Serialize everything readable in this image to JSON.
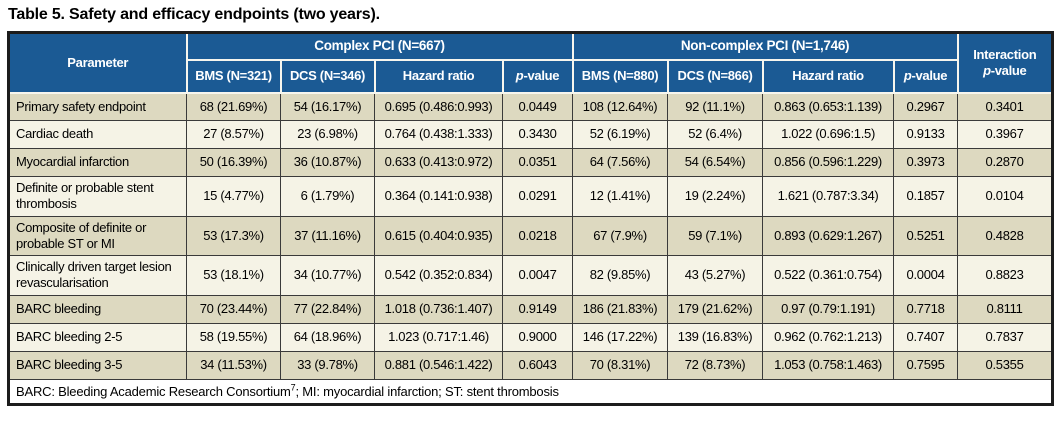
{
  "page": {
    "title": "Table 5. Safety and efficacy endpoints (two years)."
  },
  "table": {
    "colors": {
      "header_bg": "#1B5A94",
      "header_text": "#FFFFFF",
      "row_odd_bg": "#DDD9C0",
      "row_even_bg": "#F5F3E6",
      "footnote_bg": "#FFFFFF",
      "border_dark": "#3A3A3A"
    },
    "header": {
      "parameter_label": "Parameter",
      "group_complex": "Complex PCI (N=667)",
      "group_noncomplex": "Non-complex PCI (N=1,746)",
      "interaction": {
        "line1": "Interaction",
        "p_italic": "p",
        "p_rest": "-value"
      },
      "subcolumns": [
        {
          "text": "BMS (N=321)"
        },
        {
          "text": "DCS (N=346)"
        },
        {
          "text": "Hazard ratio"
        },
        {
          "italic": "p",
          "text": "-value"
        },
        {
          "text": "BMS (N=880)"
        },
        {
          "text": "DCS (N=866)"
        },
        {
          "text": "Hazard ratio"
        },
        {
          "italic": "p",
          "text": "-value"
        }
      ]
    },
    "rows": [
      {
        "parameter": "Primary safety endpoint",
        "cells": [
          "68 (21.69%)",
          "54 (16.17%)",
          "0.695 (0.486:0.993)",
          "0.0449",
          "108 (12.64%)",
          "92 (11.1%)",
          "0.863 (0.653:1.139)",
          "0.2967",
          "0.3401"
        ]
      },
      {
        "parameter": "Cardiac death",
        "cells": [
          "27 (8.57%)",
          "23 (6.98%)",
          "0.764 (0.438:1.333)",
          "0.3430",
          "52 (6.19%)",
          "52 (6.4%)",
          "1.022 (0.696:1.5)",
          "0.9133",
          "0.3967"
        ]
      },
      {
        "parameter": "Myocardial infarction",
        "cells": [
          "50 (16.39%)",
          "36 (10.87%)",
          "0.633 (0.413:0.972)",
          "0.0351",
          "64 (7.56%)",
          "54 (6.54%)",
          "0.856 (0.596:1.229)",
          "0.3973",
          "0.2870"
        ]
      },
      {
        "parameter": "Definite or probable stent thrombosis",
        "cells": [
          "15 (4.77%)",
          "6 (1.79%)",
          "0.364 (0.141:0.938)",
          "0.0291",
          "12 (1.41%)",
          "19 (2.24%)",
          "1.621 (0.787:3.34)",
          "0.1857",
          "0.0104"
        ]
      },
      {
        "parameter": "Composite of definite or probable ST or MI",
        "cells": [
          "53 (17.3%)",
          "37 (11.16%)",
          "0.615 (0.404:0.935)",
          "0.0218",
          "67 (7.9%)",
          "59 (7.1%)",
          "0.893 (0.629:1.267)",
          "0.5251",
          "0.4828"
        ]
      },
      {
        "parameter": "Clinically driven target lesion revascularisation",
        "cells": [
          "53 (18.1%)",
          "34 (10.77%)",
          "0.542 (0.352:0.834)",
          "0.0047",
          "82 (9.85%)",
          "43 (5.27%)",
          "0.522 (0.361:0.754)",
          "0.0004",
          "0.8823"
        ]
      },
      {
        "parameter": "BARC bleeding",
        "cells": [
          "70 (23.44%)",
          "77 (22.84%)",
          "1.018 (0.736:1.407)",
          "0.9149",
          "186 (21.83%)",
          "179 (21.62%)",
          "0.97 (0.79:1.191)",
          "0.7718",
          "0.8111"
        ]
      },
      {
        "parameter": "BARC bleeding 2-5",
        "cells": [
          "58 (19.55%)",
          "64 (18.96%)",
          "1.023 (0.717:1.46)",
          "0.9000",
          "146 (17.22%)",
          "139 (16.83%)",
          "0.962 (0.762:1.213)",
          "0.7407",
          "0.7837"
        ]
      },
      {
        "parameter": "BARC bleeding 3-5",
        "cells": [
          "34 (11.53%)",
          "33 (9.78%)",
          "0.881 (0.546:1.422)",
          "0.6043",
          "70 (8.31%)",
          "72 (8.73%)",
          "1.053 (0.758:1.463)",
          "0.7595",
          "0.5355"
        ]
      }
    ],
    "footnote": {
      "pre": "BARC: Bleeding Academic Research Consortium",
      "sup": "7",
      "post": "; MI: myocardial infarction; ST: stent thrombosis"
    }
  }
}
